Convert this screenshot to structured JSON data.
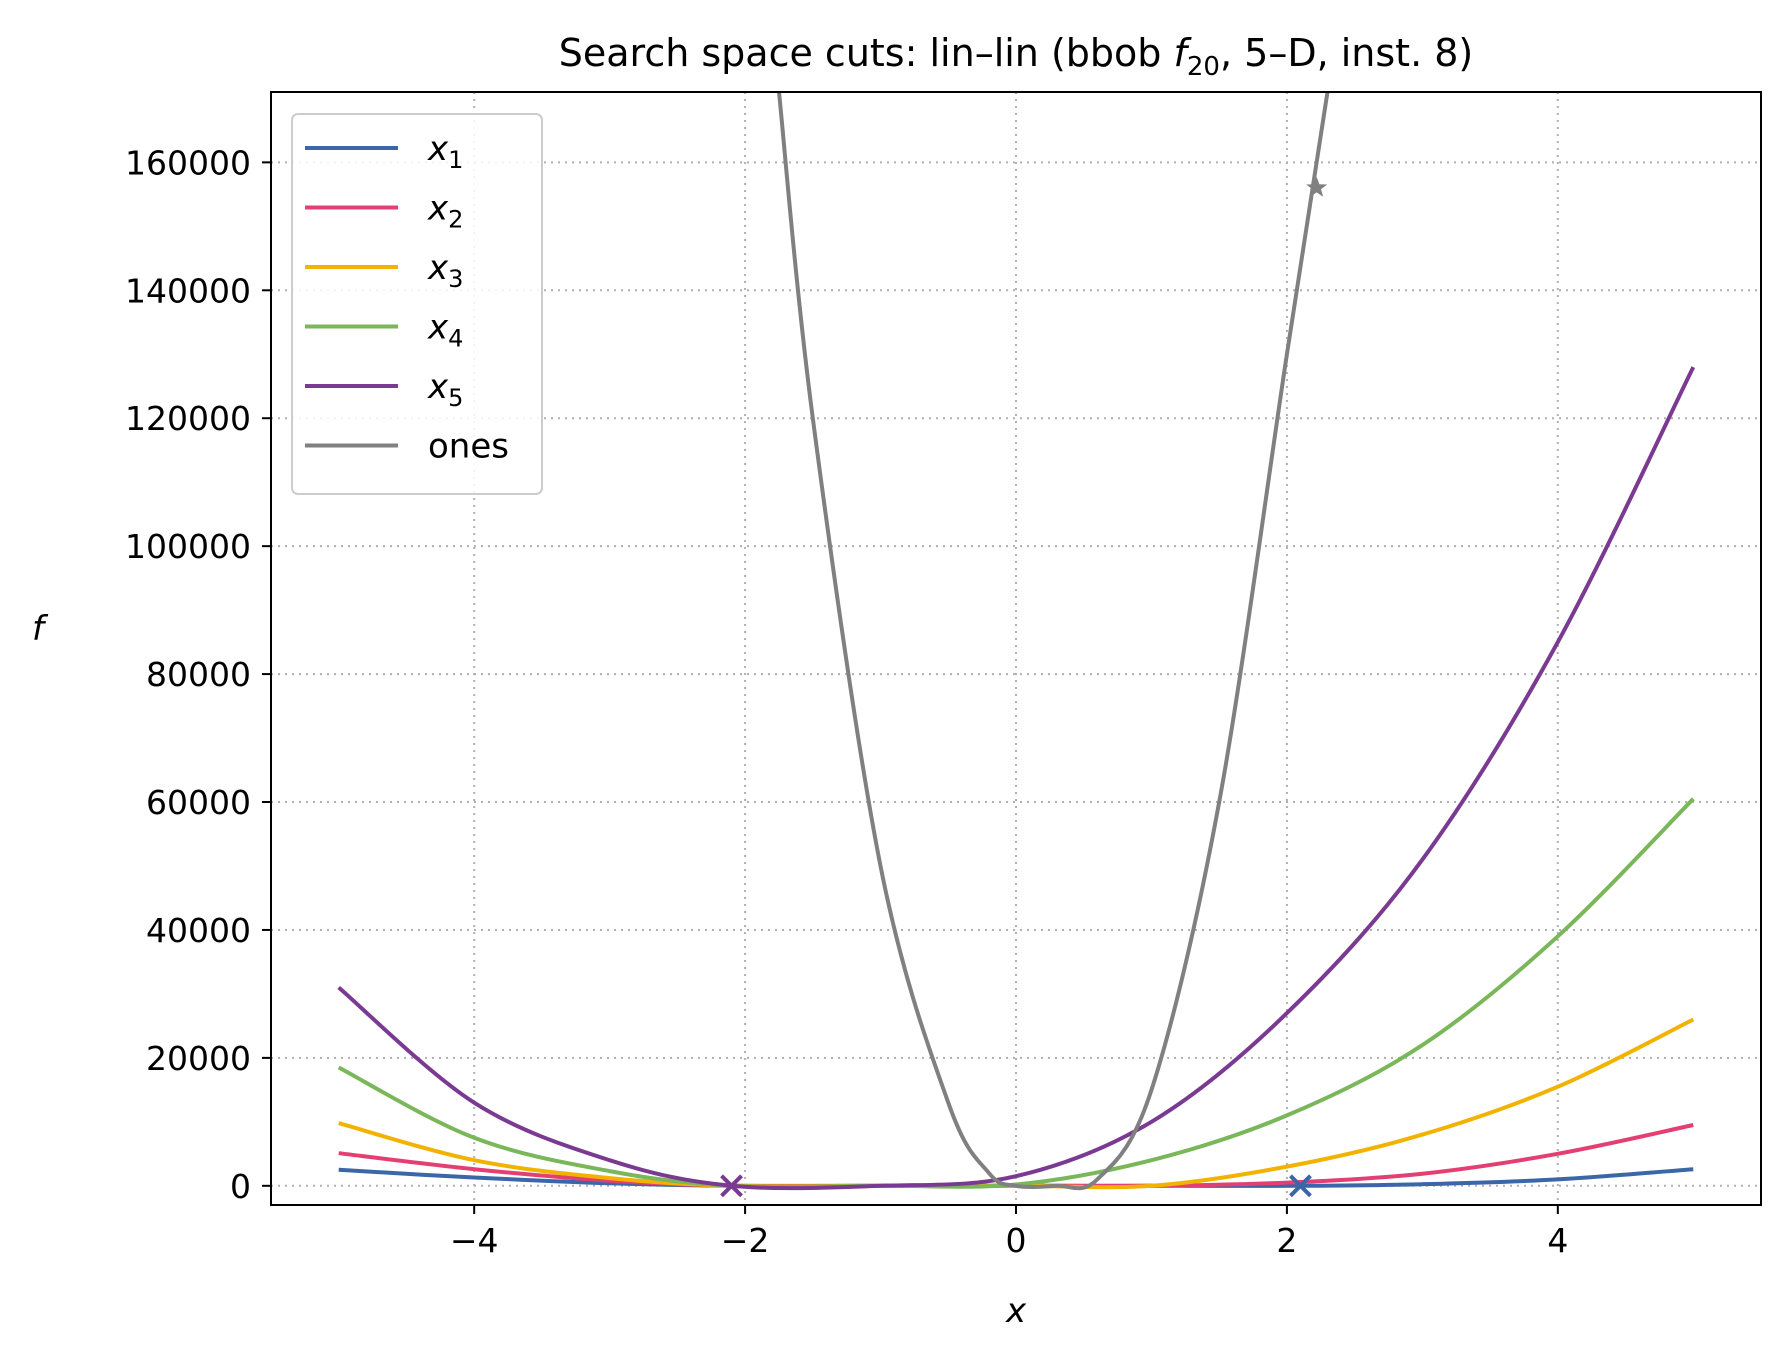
{
  "chart_data": {
    "type": "line",
    "title_parts": {
      "pre": "Search space cuts: lin–lin (bbob ",
      "func": "f",
      "func_sub": "20",
      "post": ", 5–D, inst. 8)"
    },
    "xlabel": "x",
    "ylabel": "f",
    "xlim": [
      -5.5,
      5.5
    ],
    "ylim": [
      -3000,
      171000
    ],
    "xticks": [
      -4,
      -2,
      0,
      2,
      4
    ],
    "xtick_labels": [
      "−4",
      "−2",
      "0",
      "2",
      "4"
    ],
    "yticks": [
      0,
      20000,
      40000,
      60000,
      80000,
      100000,
      120000,
      140000,
      160000
    ],
    "ytick_labels": [
      "0",
      "20000",
      "40000",
      "60000",
      "80000",
      "100000",
      "120000",
      "140000",
      "160000"
    ],
    "grid": true,
    "legend_position": "top-left",
    "series": [
      {
        "name": "x",
        "sub": "1",
        "color": "#3b66a8",
        "x": [
          -5,
          -4,
          -3,
          -2.1,
          -1,
          0,
          1,
          2.1,
          3,
          4,
          5
        ],
        "y": [
          2500,
          1300,
          400,
          0,
          0,
          0,
          0,
          0,
          250,
          1000,
          2600
        ]
      },
      {
        "name": "x",
        "sub": "2",
        "color": "#e43f72",
        "x": [
          -5,
          -4,
          -3,
          -2.1,
          -1,
          0,
          1,
          2,
          3,
          4,
          5
        ],
        "y": [
          5100,
          2600,
          800,
          0,
          0,
          0,
          0,
          500,
          1900,
          5000,
          9500
        ]
      },
      {
        "name": "x",
        "sub": "3",
        "color": "#f2b300",
        "x": [
          -5,
          -4,
          -3,
          -2.1,
          -1,
          0,
          1,
          2,
          3,
          4,
          5
        ],
        "y": [
          9800,
          4000,
          1200,
          0,
          0,
          0,
          0,
          3000,
          8000,
          15500,
          26000
        ]
      },
      {
        "name": "x",
        "sub": "4",
        "color": "#7ab65a",
        "x": [
          -5,
          -4,
          -3,
          -2.1,
          -1,
          0,
          1,
          2,
          3,
          4,
          5
        ],
        "y": [
          18500,
          7500,
          2300,
          0,
          0,
          200,
          4000,
          11000,
          22000,
          39000,
          60500
        ]
      },
      {
        "name": "x",
        "sub": "5",
        "color": "#7b3a91",
        "x": [
          -5,
          -4,
          -3,
          -2.1,
          -1,
          0,
          1,
          2,
          3,
          4,
          5
        ],
        "y": [
          31000,
          13000,
          4000,
          0,
          0,
          1500,
          10000,
          27000,
          51000,
          85000,
          128000
        ]
      },
      {
        "name": "ones",
        "sub": "",
        "color": "#808080",
        "x": [
          -1.75,
          -1.5,
          -1.0,
          -0.5,
          -0.2,
          0,
          0.3,
          0.6,
          1.0,
          1.5,
          2.0,
          2.3
        ],
        "y": [
          171000,
          120000,
          50000,
          13000,
          2000,
          0,
          0,
          1000,
          15000,
          60000,
          130000,
          171000
        ]
      }
    ],
    "markers": [
      {
        "symbol": "x",
        "x": -2.1,
        "y": 0,
        "color": "#7b3a91"
      },
      {
        "symbol": "x",
        "x": 2.1,
        "y": 0,
        "color": "#3b66a8"
      },
      {
        "symbol": "star",
        "x": 2.22,
        "y": 156000,
        "color": "#808080"
      }
    ]
  }
}
